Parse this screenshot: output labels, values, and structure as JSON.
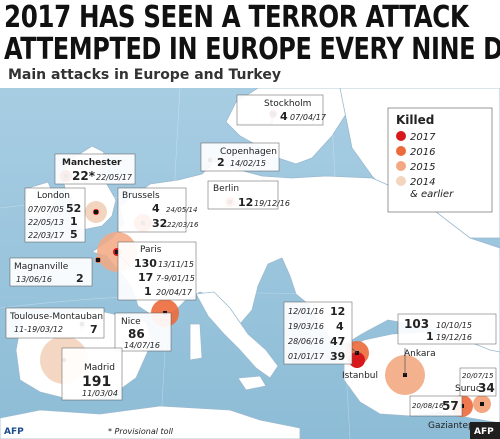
{
  "headline": {
    "line1": "2017 HAS SEEN A TERROR ATTACK",
    "line2": "ATTEMPTED IN EUROPE EVERY NINE DAYS"
  },
  "subtitle": "Main attacks in Europe and Turkey",
  "legend": {
    "title": "Killed",
    "items": [
      {
        "label": "2017",
        "color": "#d7191c"
      },
      {
        "label": "2016",
        "color": "#ec6a3c"
      },
      {
        "label": "2015",
        "color": "#f3a882"
      },
      {
        "label": "2014",
        "sublabel": "& earlier",
        "color": "#f3d5bf"
      }
    ]
  },
  "cities": {
    "stockholm": "Stockholm",
    "copenhagen": "Copenhagen",
    "berlin": "Berlin",
    "manchester": "Manchester",
    "london": "London",
    "brussels": "Brussels",
    "paris": "Paris",
    "magnanville": "Magnanville",
    "toulouse": "Toulouse-Montauban",
    "nice": "Nice",
    "madrid": "Madrid",
    "istanbul": "Istanbul",
    "ankara": "Ankara",
    "suruc": "Suruc",
    "gaziantep": "Gaziantep"
  },
  "attacks": {
    "stockholm": {
      "killed": "4",
      "date": "07/04/17"
    },
    "copenhagen": {
      "killed": "2",
      "date": "14/02/15"
    },
    "berlin": {
      "killed": "12",
      "date": "19/12/16"
    },
    "manchester": {
      "killed": "22*",
      "date": "22/05/17"
    },
    "london": [
      {
        "date": "07/07/05",
        "killed": "52"
      },
      {
        "date": "22/05/13",
        "killed": "1"
      },
      {
        "date": "22/03/17",
        "killed": "5"
      }
    ],
    "brussels": [
      {
        "killed": "4",
        "date": "24/05/14"
      },
      {
        "killed": "32",
        "date": "22/03/16"
      }
    ],
    "paris": [
      {
        "killed": "130",
        "date": "13/11/15"
      },
      {
        "killed": "17",
        "date": "7-9/01/15"
      },
      {
        "killed": "1",
        "date": "20/04/17"
      }
    ],
    "magnanville": {
      "date": "13/06/16",
      "killed": "2"
    },
    "toulouse": {
      "date": "11-19/03/12",
      "killed": "7"
    },
    "nice": {
      "killed": "86",
      "date": "14/07/16"
    },
    "madrid": {
      "killed": "191",
      "date": "11/03/04"
    },
    "istanbul": [
      {
        "date": "12/01/16",
        "killed": "12"
      },
      {
        "date": "19/03/16",
        "killed": "4"
      },
      {
        "date": "28/06/16",
        "killed": "47"
      },
      {
        "date": "01/01/17",
        "killed": "39"
      }
    ],
    "ankara": [
      {
        "killed": "103",
        "date": "10/10/15"
      },
      {
        "killed": "1",
        "date": "19/12/16"
      }
    ],
    "suruc": {
      "date": "20/07/15",
      "killed": "34"
    },
    "gaziantep": {
      "date": "20/08/16",
      "killed": "57"
    }
  },
  "footnote": "* Provisional toll",
  "credit": "AFP",
  "corner_badge": "AFP",
  "watermark": "AFP"
}
